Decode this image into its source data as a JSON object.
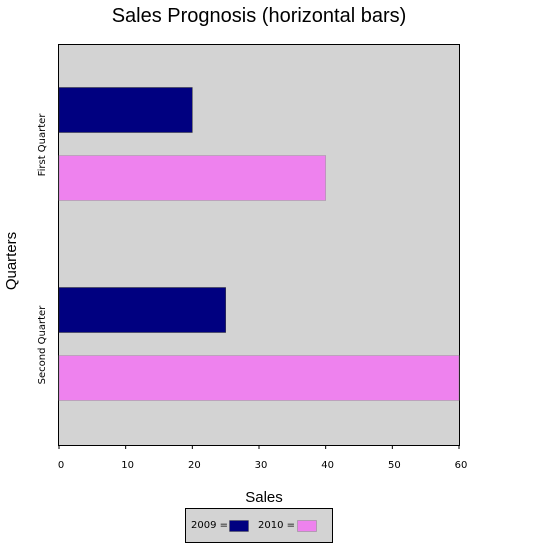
{
  "chart_data": {
    "type": "bar",
    "orientation": "horizontal",
    "title": "Sales Prognosis (horizontal bars)",
    "xlabel": "Sales",
    "ylabel": "Quarters",
    "categories": [
      "First Quarter",
      "Second Quarter"
    ],
    "series": [
      {
        "name": "2009",
        "values": [
          20,
          25
        ],
        "color": "#000080"
      },
      {
        "name": "2010",
        "values": [
          40,
          60
        ],
        "color": "#ee82ee"
      }
    ],
    "xlim": [
      0,
      60
    ],
    "xticks": [
      0,
      10,
      20,
      30,
      40,
      50,
      60
    ],
    "xtick_labels": [
      "0",
      "10",
      "20",
      "30",
      "40",
      "50",
      "60"
    ],
    "legend": {
      "position": "bottom",
      "entries": [
        "2009 =",
        "2010 ="
      ]
    },
    "plot_background": "#d3d3d3",
    "grid": false
  }
}
